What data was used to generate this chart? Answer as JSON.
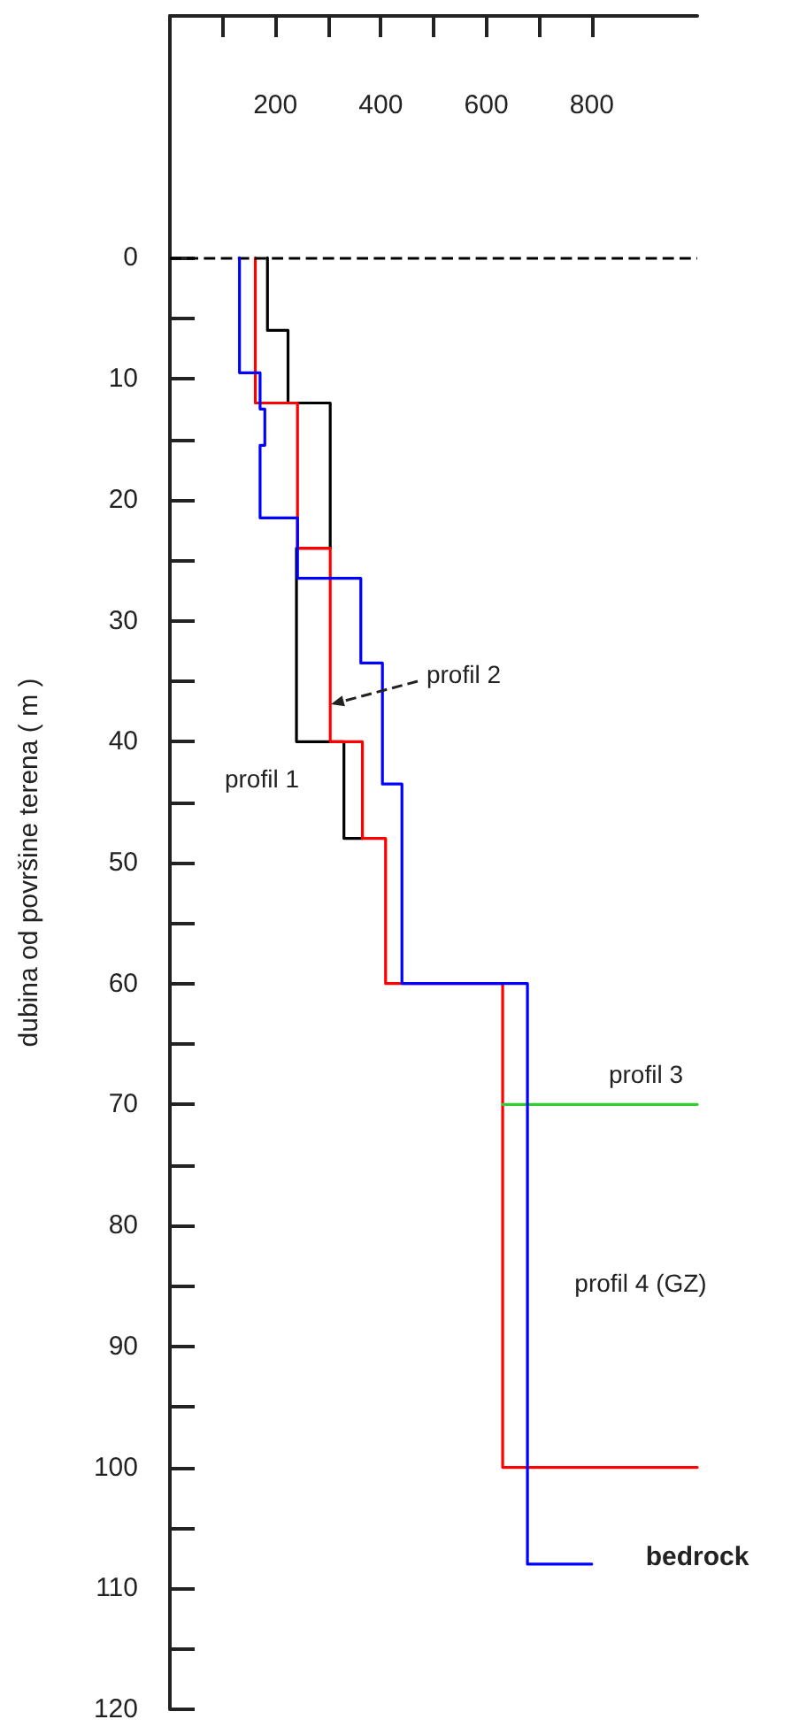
{
  "chart_data": {
    "type": "line",
    "ylabel": "dubina od površine terena ( m )",
    "xlim": [
      0,
      1000
    ],
    "xticks": [
      {
        "value": 100,
        "label": null
      },
      200,
      {
        "value": 300,
        "label": null
      },
      400,
      {
        "value": 500,
        "label": null
      },
      600,
      {
        "value": 700,
        "label": null
      },
      800
    ],
    "ylim": [
      120,
      -20
    ],
    "yticks": [
      0,
      {
        "value": 5,
        "label": null
      },
      10,
      {
        "value": 15,
        "label": null
      },
      20,
      {
        "value": 25,
        "label": null
      },
      30,
      {
        "value": 35,
        "label": null
      },
      40,
      {
        "value": 45,
        "label": null
      },
      50,
      {
        "value": 55,
        "label": null
      },
      60,
      {
        "value": 65,
        "label": null
      },
      70,
      {
        "value": 75,
        "label": null
      },
      80,
      {
        "value": 85,
        "label": null
      },
      90,
      {
        "value": 95,
        "label": null
      },
      100,
      {
        "value": 105,
        "label": null
      },
      110,
      {
        "value": 115,
        "label": null
      },
      120
    ],
    "grid": false,
    "marker": "none",
    "line_style": "solid",
    "series": [
      {
        "color": "#000000",
        "x": [
          185,
          185,
          224,
          224,
          304,
          304,
          240,
          240,
          330,
          330,
          365
        ],
        "values": [
          0,
          6,
          6,
          12,
          12,
          24,
          24,
          40,
          40,
          48,
          48
        ]
      },
      {
        "color": "#ff0000",
        "x": [
          162,
          162,
          242,
          242,
          304,
          304,
          365,
          365,
          409,
          409,
          631,
          631,
          1000
        ],
        "values": [
          0,
          12,
          12,
          24,
          24,
          40,
          40,
          48,
          48,
          60,
          60,
          100,
          100
        ]
      },
      {
        "color": "#33cc33",
        "x": [
          631,
          1000
        ],
        "values": [
          70,
          70
        ]
      },
      {
        "color": "#0000ff",
        "x": [
          132,
          132,
          171,
          171,
          180,
          180,
          171,
          171,
          242,
          242,
          362,
          362,
          403,
          403,
          440,
          440,
          678,
          678,
          800
        ],
        "values": [
          0,
          9.5,
          9.5,
          12.5,
          12.5,
          15.5,
          15.5,
          21.5,
          21.5,
          26.5,
          26.5,
          33.5,
          33.5,
          43.5,
          43.5,
          60,
          60,
          108,
          108
        ]
      }
    ],
    "ref_lines": [
      {
        "axis": "y",
        "value": 0,
        "label": null,
        "color": "#000000",
        "line_style": "dashed"
      }
    ],
    "annotations": [
      "profil 1",
      "profil 2",
      "profil 3",
      "profil 4 (GZ)",
      "bedrock"
    ]
  }
}
